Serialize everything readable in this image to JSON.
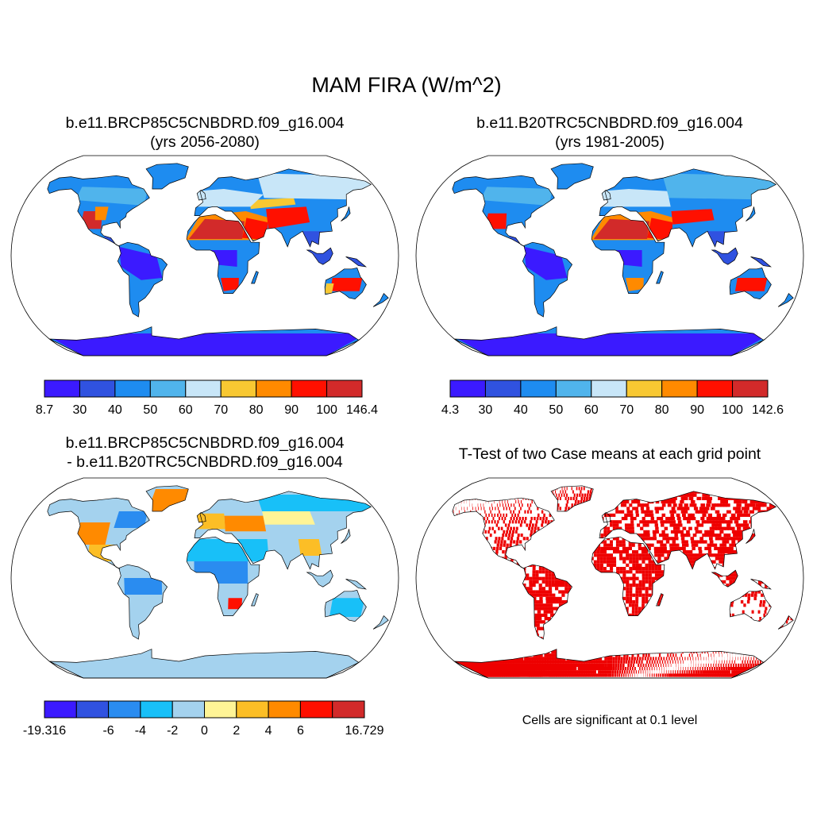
{
  "chart_data": [
    {
      "type": "heatmap",
      "panel": "case-climatology",
      "title": "MAM FIRA (W/m^2)",
      "case_name": "b.e11.BRCP85C5CNBDRD.f09_g16.004",
      "years": "(yrs 2056-2080)",
      "units": "W/m^2",
      "colorbar": {
        "labels": [
          "8.7",
          "30",
          "40",
          "50",
          "60",
          "70",
          "80",
          "90",
          "100",
          "146.4"
        ],
        "colors": [
          "#3b1aff",
          "#3052e0",
          "#1e8cf0",
          "#50b4ec",
          "#c8e6f8",
          "#f8c832",
          "#ff8a00",
          "#ff1000",
          "#d22a2a"
        ]
      }
    },
    {
      "type": "heatmap",
      "panel": "control-climatology",
      "case_name": "b.e11.B20TRC5CNBDRD.f09_g16.004",
      "years": "(yrs 1981-2005)",
      "units": "W/m^2",
      "colorbar": {
        "labels": [
          "4.3",
          "30",
          "40",
          "50",
          "60",
          "70",
          "80",
          "90",
          "100",
          "142.6"
        ],
        "colors": [
          "#3b1aff",
          "#3052e0",
          "#1e8cf0",
          "#50b4ec",
          "#c8e6f8",
          "#f8c832",
          "#ff8a00",
          "#ff1000",
          "#d22a2a"
        ]
      }
    },
    {
      "type": "heatmap",
      "panel": "difference",
      "case_name": "b.e11.BRCP85C5CNBDRD.f09_g16.004",
      "minus_case_name": "- b.e11.B20TRC5CNBDRD.f09_g16.004",
      "units": "W/m^2",
      "colorbar": {
        "labels": [
          "-19.316",
          "",
          "-6",
          "-4",
          "-2",
          "0",
          "2",
          "4",
          "6",
          "",
          "16.729"
        ],
        "colors": [
          "#3b1aff",
          "#3052e0",
          "#2a8cf0",
          "#18c0f8",
          "#a4d2ee",
          "#fff496",
          "#fcbe26",
          "#ff8a00",
          "#ff1000",
          "#d22a2a"
        ]
      }
    },
    {
      "type": "heatmap",
      "panel": "significance",
      "title": "T-Test of two Case means at each grid point",
      "note": "Cells are significant at 0.1 level",
      "color": "#ee0000"
    }
  ]
}
